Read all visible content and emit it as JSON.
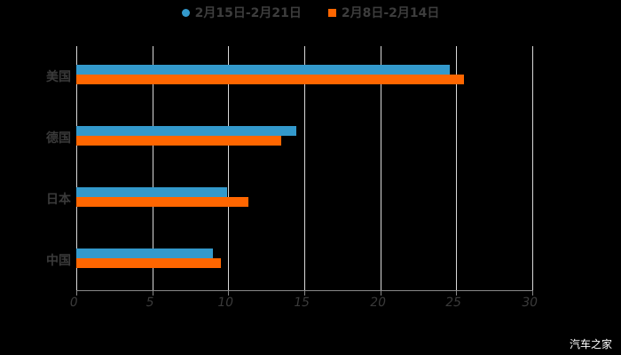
{
  "chart_data": {
    "type": "bar",
    "orientation": "horizontal",
    "categories": [
      "美国",
      "德国",
      "日本",
      "中国"
    ],
    "series": [
      {
        "name": "2月15日-2月21日",
        "color": "#3399cc",
        "values": [
          24.6,
          14.5,
          9.9,
          9.0
        ]
      },
      {
        "name": "2月8日-2月14日",
        "color": "#ff6600",
        "values": [
          25.5,
          13.5,
          11.3,
          9.5
        ]
      }
    ],
    "xlim": [
      0,
      30
    ],
    "xticks": [
      "0",
      "5",
      "10",
      "15",
      "20",
      "25",
      "30"
    ],
    "grid": true,
    "legend_position": "top",
    "title": "",
    "xlabel": "",
    "ylabel": ""
  },
  "legend": {
    "s1": "2月15日-2月21日",
    "s2": "2月8日-2月14日"
  },
  "watermark": "汽车之家"
}
